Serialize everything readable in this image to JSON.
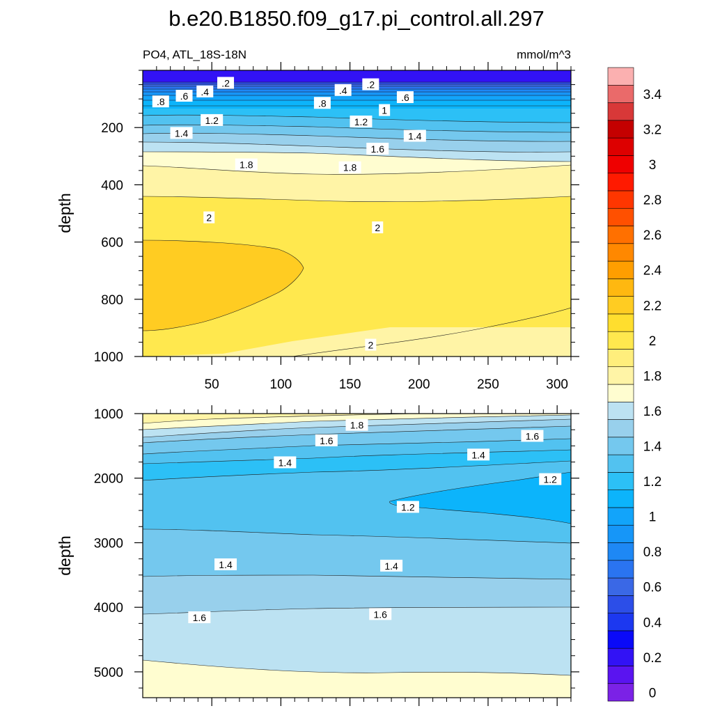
{
  "chart_data": {
    "type": "contour",
    "title": "b.e20.B1850.f09_g17.pi_control.all.297",
    "left_subtitle": "PO4, ATL_18S-18N",
    "right_subtitle": "mmol/m^3",
    "ylabel": "depth",
    "xlim": [
      0,
      310
    ],
    "x_ticks": [
      50,
      100,
      150,
      200,
      250,
      300
    ],
    "x_tick_labels": [
      "50",
      "100",
      "150",
      "200",
      "250",
      "300"
    ],
    "panels": [
      {
        "name": "upper",
        "ylim": [
          0,
          1000
        ],
        "y_inverted": true,
        "y_ticks": [
          200,
          400,
          600,
          800,
          1000
        ],
        "y_tick_labels": [
          "200",
          "400",
          "600",
          "800",
          "1000"
        ],
        "show_x_labels": true,
        "contour_labels": [
          {
            "text": ".2",
            "x": 60,
            "y": 45
          },
          {
            "text": ".4",
            "x": 45,
            "y": 75
          },
          {
            "text": ".6",
            "x": 30,
            "y": 90
          },
          {
            "text": ".8",
            "x": 13,
            "y": 110
          },
          {
            "text": ".4",
            "x": 145,
            "y": 70
          },
          {
            "text": ".2",
            "x": 165,
            "y": 50
          },
          {
            "text": ".6",
            "x": 190,
            "y": 95
          },
          {
            "text": ".8",
            "x": 130,
            "y": 115
          },
          {
            "text": "1",
            "x": 175,
            "y": 140
          },
          {
            "text": "1.2",
            "x": 50,
            "y": 175
          },
          {
            "text": "1.2",
            "x": 158,
            "y": 180
          },
          {
            "text": "1.4",
            "x": 28,
            "y": 220
          },
          {
            "text": "1.4",
            "x": 197,
            "y": 230
          },
          {
            "text": "1.6",
            "x": 170,
            "y": 275
          },
          {
            "text": "1.8",
            "x": 75,
            "y": 330
          },
          {
            "text": "1.8",
            "x": 150,
            "y": 340
          },
          {
            "text": "2",
            "x": 48,
            "y": 515
          },
          {
            "text": "2",
            "x": 170,
            "y": 550
          },
          {
            "text": "2",
            "x": 165,
            "y": 960
          }
        ]
      },
      {
        "name": "lower",
        "ylim": [
          1000,
          5400
        ],
        "y_inverted": true,
        "y_ticks": [
          1000,
          2000,
          3000,
          4000,
          5000
        ],
        "y_tick_labels": [
          "1000",
          "2000",
          "3000",
          "4000",
          "5000"
        ],
        "show_x_labels": false,
        "contour_labels": [
          {
            "text": "1.8",
            "x": 155,
            "y": 1180
          },
          {
            "text": "1.6",
            "x": 133,
            "y": 1420
          },
          {
            "text": "1.6",
            "x": 282,
            "y": 1350
          },
          {
            "text": "1.4",
            "x": 103,
            "y": 1760
          },
          {
            "text": "1.4",
            "x": 243,
            "y": 1640
          },
          {
            "text": "1.2",
            "x": 295,
            "y": 2020
          },
          {
            "text": "1.2",
            "x": 192,
            "y": 2450
          },
          {
            "text": "1.4",
            "x": 60,
            "y": 3340
          },
          {
            "text": "1.4",
            "x": 180,
            "y": 3360
          },
          {
            "text": "1.6",
            "x": 41,
            "y": 4160
          },
          {
            "text": "1.6",
            "x": 172,
            "y": 4110
          }
        ]
      }
    ],
    "colorbar": {
      "levels": [
        0,
        0.1,
        0.2,
        0.3,
        0.4,
        0.5,
        0.6,
        0.7,
        0.8,
        0.9,
        1.0,
        1.1,
        1.2,
        1.3,
        1.4,
        1.5,
        1.6,
        1.7,
        1.8,
        1.9,
        2.0,
        2.1,
        2.2,
        2.3,
        2.4,
        2.5,
        2.6,
        2.7,
        2.8,
        2.9,
        3.0,
        3.1,
        3.2,
        3.3,
        3.4,
        3.5
      ],
      "labels": [
        {
          "value": 0,
          "text": "0"
        },
        {
          "value": 0.2,
          "text": "0.2"
        },
        {
          "value": 0.4,
          "text": "0.4"
        },
        {
          "value": 0.6,
          "text": "0.6"
        },
        {
          "value": 0.8,
          "text": "0.8"
        },
        {
          "value": 1.0,
          "text": "1"
        },
        {
          "value": 1.2,
          "text": "1.2"
        },
        {
          "value": 1.4,
          "text": "1.4"
        },
        {
          "value": 1.6,
          "text": "1.6"
        },
        {
          "value": 1.8,
          "text": "1.8"
        },
        {
          "value": 2.0,
          "text": "2"
        },
        {
          "value": 2.2,
          "text": "2.2"
        },
        {
          "value": 2.4,
          "text": "2.4"
        },
        {
          "value": 2.6,
          "text": "2.6"
        },
        {
          "value": 2.8,
          "text": "2.8"
        },
        {
          "value": 3.0,
          "text": "3"
        },
        {
          "value": 3.2,
          "text": "3.2"
        },
        {
          "value": 3.4,
          "text": "3.4"
        }
      ],
      "colors": [
        "#7b22e6",
        "#5a14f0",
        "#3212f5",
        "#0a0af8",
        "#1c38f0",
        "#2c4ee8",
        "#3a68e6",
        "#2a74f0",
        "#1e88f5",
        "#1696f8",
        "#12a4fa",
        "#0cb4fb",
        "#2cc0f6",
        "#52c2f0",
        "#74c8ee",
        "#98d0ec",
        "#bce2f2",
        "#fffdd0",
        "#fff4a6",
        "#ffee7c",
        "#ffe84e",
        "#ffde2e",
        "#ffcc22",
        "#ffb810",
        "#ff9e00",
        "#ff8800",
        "#ff7000",
        "#ff5000",
        "#ff3600",
        "#ff1a00",
        "#ef0000",
        "#dd0000",
        "#c40000",
        "#d83838",
        "#ea6a6a",
        "#fbb0b0"
      ]
    }
  }
}
